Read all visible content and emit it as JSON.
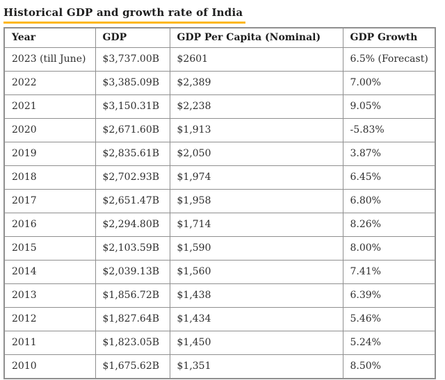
{
  "page": {
    "title": "Historical GDP and growth rate of India",
    "accent_color": "#fdb714",
    "border_color": "#8f8f8f"
  },
  "table": {
    "columns": [
      "Year",
      "GDP",
      "GDP Per Capita (Nominal)",
      "GDP Growth"
    ],
    "rows": [
      [
        "2023 (till June)",
        "$3,737.00B",
        "$2601",
        "6.5% (Forecast)"
      ],
      [
        "2022",
        "$3,385.09B",
        "$2,389",
        "7.00%"
      ],
      [
        "2021",
        "$3,150.31B",
        "$2,238",
        "9.05%"
      ],
      [
        "2020",
        "$2,671.60B",
        "$1,913",
        "-5.83%"
      ],
      [
        "2019",
        "$2,835.61B",
        "$2,050",
        "3.87%"
      ],
      [
        "2018",
        "$2,702.93B",
        "$1,974",
        "6.45%"
      ],
      [
        "2017",
        "$2,651.47B",
        "$1,958",
        "6.80%"
      ],
      [
        "2016",
        "$2,294.80B",
        "$1,714",
        "8.26%"
      ],
      [
        "2015",
        "$2,103.59B",
        "$1,590",
        "8.00%"
      ],
      [
        "2014",
        "$2,039.13B",
        "$1,560",
        "7.41%"
      ],
      [
        "2013",
        "$1,856.72B",
        "$1,438",
        "6.39%"
      ],
      [
        "2012",
        "$1,827.64B",
        "$1,434",
        "5.46%"
      ],
      [
        "2011",
        "$1,823.05B",
        "$1,450",
        "5.24%"
      ],
      [
        "2010",
        "$1,675.62B",
        "$1,351",
        "8.50%"
      ]
    ]
  },
  "chart_data": {
    "type": "table",
    "title": "Historical GDP and growth rate of India",
    "columns": [
      "Year",
      "GDP",
      "GDP Per Capita (Nominal)",
      "GDP Growth"
    ],
    "categories": [
      "2023 (till June)",
      "2022",
      "2021",
      "2020",
      "2019",
      "2018",
      "2017",
      "2016",
      "2015",
      "2014",
      "2013",
      "2012",
      "2011",
      "2010"
    ],
    "series": [
      {
        "name": "GDP (billions USD)",
        "values": [
          3737.0,
          3385.09,
          3150.31,
          2671.6,
          2835.61,
          2702.93,
          2651.47,
          2294.8,
          2103.59,
          2039.13,
          1856.72,
          1827.64,
          1823.05,
          1675.62
        ]
      },
      {
        "name": "GDP Per Capita (Nominal, USD)",
        "values": [
          2601,
          2389,
          2238,
          1913,
          2050,
          1974,
          1958,
          1714,
          1590,
          1560,
          1438,
          1434,
          1450,
          1351
        ]
      },
      {
        "name": "GDP Growth (%)",
        "values": [
          6.5,
          7.0,
          9.05,
          -5.83,
          3.87,
          6.45,
          6.8,
          8.26,
          8.0,
          7.41,
          6.39,
          5.46,
          5.24,
          8.5
        ]
      }
    ],
    "notes": {
      "2023_growth": "6.5% (Forecast)"
    }
  }
}
